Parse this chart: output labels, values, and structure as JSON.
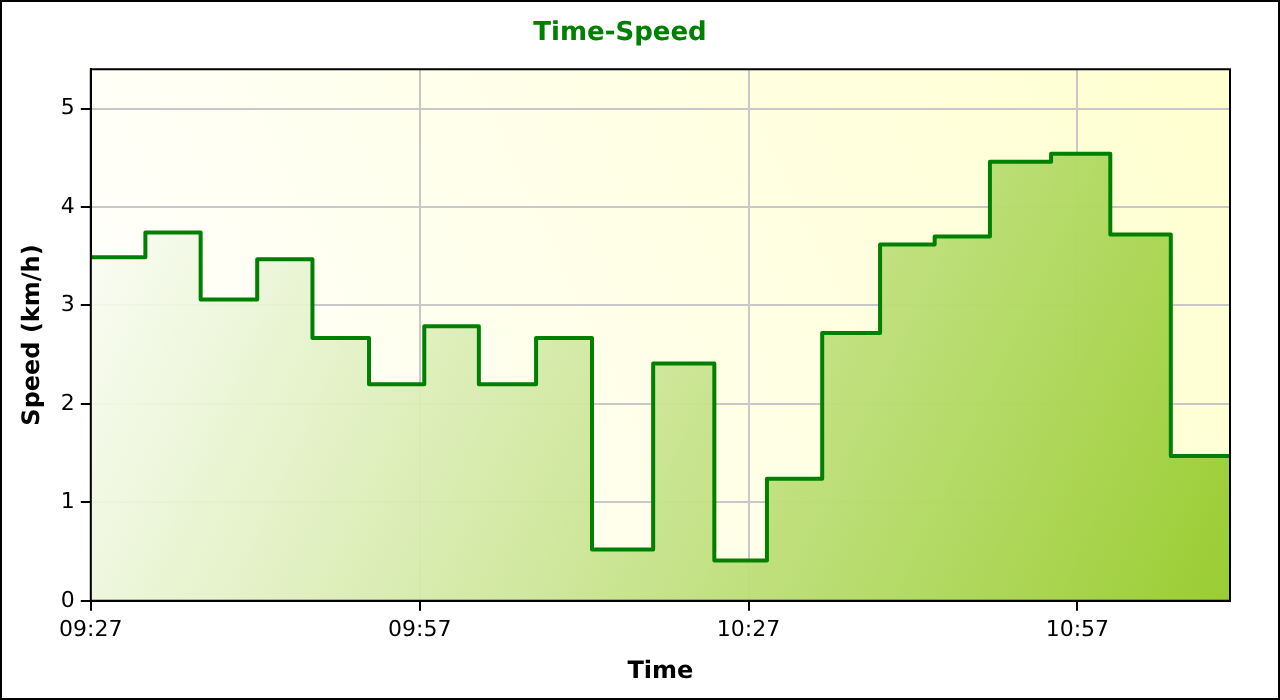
{
  "chart_data": {
    "type": "area",
    "title": "Time-Speed",
    "xlabel": "Time",
    "ylabel": "Speed (km/h)",
    "x": [
      9.45,
      9.533,
      9.533,
      9.617,
      9.617,
      9.703,
      9.703,
      9.787,
      9.787,
      9.873,
      9.873,
      9.957,
      9.957,
      10.04,
      10.04,
      10.127,
      10.127,
      10.212,
      10.212,
      10.305,
      10.305,
      10.398,
      10.398,
      10.478,
      10.478,
      10.562,
      10.562,
      10.65,
      10.65,
      10.733,
      10.733,
      10.817,
      10.817,
      10.91,
      10.91,
      11.0,
      11.0,
      11.092,
      11.092,
      11.182
    ],
    "series": [
      {
        "color": "#008000",
        "values": [
          3.49,
          3.49,
          3.74,
          3.74,
          3.06,
          3.06,
          3.47,
          3.47,
          2.67,
          2.67,
          2.2,
          2.2,
          2.79,
          2.79,
          2.2,
          2.2,
          2.67,
          2.67,
          0.52,
          0.52,
          2.41,
          2.41,
          0.41,
          0.41,
          1.24,
          1.24,
          2.72,
          2.72,
          3.62,
          3.62,
          3.7,
          3.7,
          4.46,
          4.46,
          4.54,
          4.54,
          3.72,
          3.72,
          1.47,
          1.47
        ]
      }
    ],
    "xlim": [
      9.45,
      11.182
    ],
    "xticks": [
      {
        "value": 9.45,
        "label": "09:27"
      },
      {
        "value": 9.95,
        "label": "09:57"
      },
      {
        "value": 10.45,
        "label": "10:27"
      },
      {
        "value": 10.95,
        "label": "10:57"
      }
    ],
    "ylim": [
      0,
      5.4
    ],
    "yticks": [
      0,
      1,
      2,
      3,
      4,
      5
    ],
    "grid": true,
    "legend": false,
    "marker": "none",
    "line_style": "solid"
  }
}
